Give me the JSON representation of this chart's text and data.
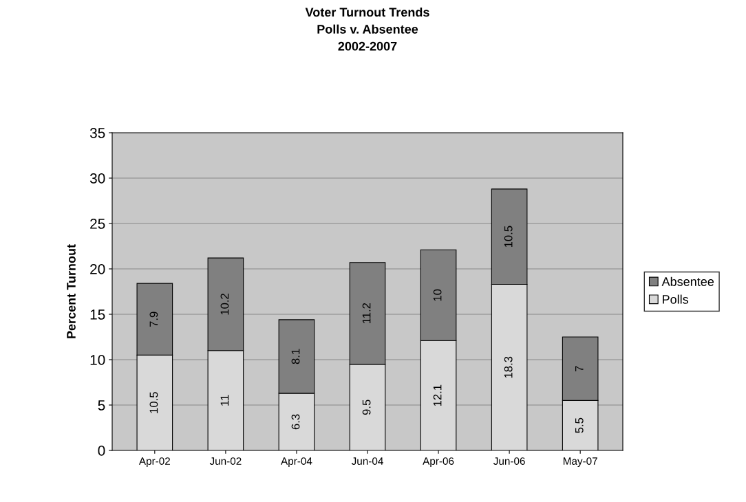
{
  "chart_data": {
    "type": "bar",
    "title": "Voter Turnout Trends\nPolls v. Absentee\n2002-2007",
    "ylabel": "Percent Turnout",
    "categories": [
      "Apr-02",
      "Jun-02",
      "Apr-04",
      "Jun-04",
      "Apr-06",
      "Jun-06",
      "May-07"
    ],
    "series": [
      {
        "name": "Polls",
        "color": "#d9d9d9",
        "values": [
          10.5,
          11,
          6.3,
          9.5,
          12.1,
          18.3,
          5.5
        ]
      },
      {
        "name": "Absentee",
        "color": "#808080",
        "values": [
          7.9,
          10.2,
          8.1,
          11.2,
          10,
          10.5,
          7
        ]
      }
    ],
    "stacked": true,
    "ylim": [
      0,
      35
    ],
    "yticks": [
      0,
      5,
      10,
      15,
      20,
      25,
      30,
      35
    ],
    "grid": "y",
    "legend": "right",
    "data_labels": true
  }
}
